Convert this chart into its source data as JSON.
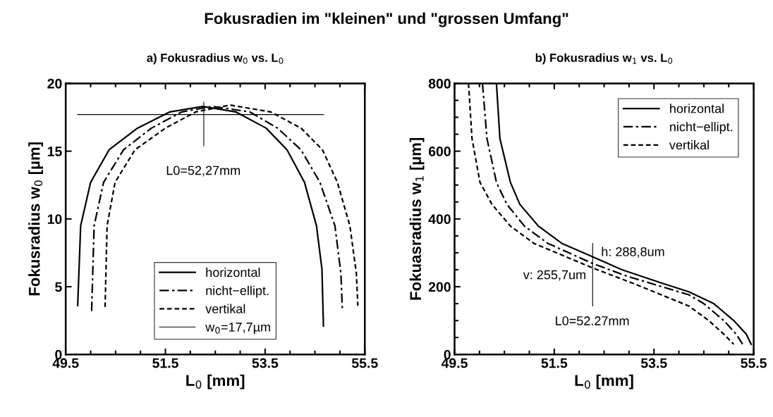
{
  "chart_data": [
    {
      "type": "line",
      "title": "a) Fokusradius w$_{0}$ vs. L$_{0}$",
      "xlabel": "L$_{0}$ [mm]",
      "ylabel": "Fokusradius w$_{0}$ [µm]",
      "annotations": [
        "Fokusradien im \"kleinen\" und \"grossen Umfang\"",
        "L0=52,27mm"
      ],
      "xlim": [
        49.5,
        55.5
      ],
      "ylim": [
        0,
        20
      ],
      "xticks": [
        49.5,
        {
          "value": 50.0,
          "label": null
        },
        {
          "value": 50.5,
          "label": null
        },
        {
          "value": 51.0,
          "label": null
        },
        51.5,
        {
          "value": 52.0,
          "label": null
        },
        {
          "value": 52.5,
          "label": null
        },
        {
          "value": 53.0,
          "label": null
        },
        53.5,
        {
          "value": 54.0,
          "label": null
        },
        {
          "value": 54.5,
          "label": null
        },
        {
          "value": 55.0,
          "label": null
        },
        55.5
      ],
      "yticks": [
        0,
        5,
        10,
        15,
        20
      ],
      "legend": "bottom",
      "grid": false,
      "series": [
        {
          "name": "horizontal",
          "color": "#000000",
          "line_style": "solid",
          "x": [
            49.74,
            49.8,
            50.0,
            50.37,
            50.94,
            51.59,
            52.25,
            52.91,
            53.52,
            53.94,
            54.29,
            54.53,
            54.64,
            54.67
          ],
          "values": [
            3.6,
            9.5,
            12.7,
            15.1,
            16.7,
            17.9,
            18.3,
            17.9,
            16.7,
            15.1,
            12.7,
            9.5,
            6.3,
            2.1
          ]
        },
        {
          "name": "nicht−ellipt.",
          "color": "#000000",
          "line_style": "dashdot",
          "x": [
            50.02,
            50.07,
            50.26,
            50.66,
            51.22,
            51.83,
            52.44,
            53.19,
            53.75,
            54.22,
            54.6,
            54.9,
            55.02,
            55.05
          ],
          "values": [
            3.2,
            9.5,
            12.7,
            15.1,
            16.7,
            17.9,
            18.3,
            17.9,
            16.7,
            15.1,
            12.7,
            9.5,
            6.0,
            3.3
          ]
        },
        {
          "name": "vertikal",
          "color": "#000000",
          "line_style": "dashed",
          "x": [
            50.29,
            50.33,
            50.49,
            50.89,
            51.5,
            52.11,
            52.8,
            53.61,
            54.22,
            54.65,
            54.95,
            55.2,
            55.33,
            55.36
          ],
          "values": [
            3.5,
            9.5,
            12.7,
            15.1,
            16.7,
            17.9,
            18.4,
            17.9,
            16.7,
            15.1,
            12.7,
            9.5,
            6.0,
            3.6
          ]
        },
        {
          "name": "w$_{0}$=17,7µm",
          "color": "#000000",
          "line_style": "solid",
          "x": [
            49.74,
            54.67
          ],
          "values": [
            17.7,
            17.7
          ]
        },
        {
          "color": "#000000",
          "line_style": "solid",
          "x": [
            52.27,
            52.27
          ],
          "values": [
            15.4,
            18.6
          ]
        }
      ]
    },
    {
      "type": "line",
      "title": "b) Fokusradius w$_{1}$ vs. L$_{0}$",
      "xlabel": "L$_{0}$ [mm]",
      "ylabel": "Fokuasradius w$_{1}$ [µm]",
      "annotations": [
        "h: 288,8um",
        "v: 255,7um",
        "L0=52.27mm"
      ],
      "xlim": [
        49.5,
        55.5
      ],
      "ylim": [
        0,
        800
      ],
      "xticks": [
        49.5,
        {
          "value": 50.0,
          "label": null
        },
        {
          "value": 50.5,
          "label": null
        },
        {
          "value": 51.0,
          "label": null
        },
        51.5,
        {
          "value": 52.0,
          "label": null
        },
        {
          "value": 52.5,
          "label": null
        },
        {
          "value": 53.0,
          "label": null
        },
        53.5,
        {
          "value": 54.0,
          "label": null
        },
        {
          "value": 54.5,
          "label": null
        },
        {
          "value": 55.0,
          "label": null
        },
        55.5
      ],
      "yticks": [
        0,
        {
          "value": 50,
          "label": null
        },
        {
          "value": 100,
          "label": null
        },
        {
          "value": 150,
          "label": null
        },
        200,
        {
          "value": 250,
          "label": null
        },
        {
          "value": 300,
          "label": null
        },
        {
          "value": 350,
          "label": null
        },
        400,
        {
          "value": 450,
          "label": null
        },
        {
          "value": 500,
          "label": null
        },
        {
          "value": 550,
          "label": null
        },
        600,
        {
          "value": 650,
          "label": null
        },
        {
          "value": 700,
          "label": null
        },
        {
          "value": 750,
          "label": null
        },
        800
      ],
      "legend": "top right",
      "grid": false,
      "series": [
        {
          "name": "horizontal",
          "color": "#000000",
          "line_style": "solid",
          "x": [
            50.34,
            50.41,
            50.62,
            50.81,
            51.18,
            51.65,
            52.26,
            52.86,
            53.65,
            54.2,
            54.7,
            55.1,
            55.35,
            55.45
          ],
          "values": [
            800,
            637,
            508,
            443,
            379,
            328,
            289,
            250,
            211,
            185,
            150,
            100,
            60,
            30
          ]
        },
        {
          "name": "nicht−ellipt.",
          "color": "#000000",
          "line_style": "dashdot",
          "x": [
            50.06,
            50.15,
            50.34,
            50.55,
            50.9,
            51.37,
            52.26,
            52.96,
            54.2,
            54.5,
            54.9,
            55.15,
            55.28
          ],
          "values": [
            800,
            637,
            508,
            443,
            379,
            328,
            269,
            231,
            176,
            150,
            100,
            60,
            30
          ]
        },
        {
          "name": "vertikal",
          "color": "#000000",
          "line_style": "dashed",
          "x": [
            49.78,
            49.85,
            50.01,
            50.25,
            50.62,
            51.09,
            52.26,
            53.06,
            54.2,
            54.6,
            54.9,
            55.1
          ],
          "values": [
            800,
            637,
            508,
            443,
            379,
            328,
            256,
            211,
            143,
            100,
            60,
            30
          ]
        },
        {
          "color": "#000000",
          "line_style": "solid",
          "x": [
            52.27,
            52.27
          ],
          "values": [
            143,
            328
          ]
        }
      ]
    }
  ]
}
